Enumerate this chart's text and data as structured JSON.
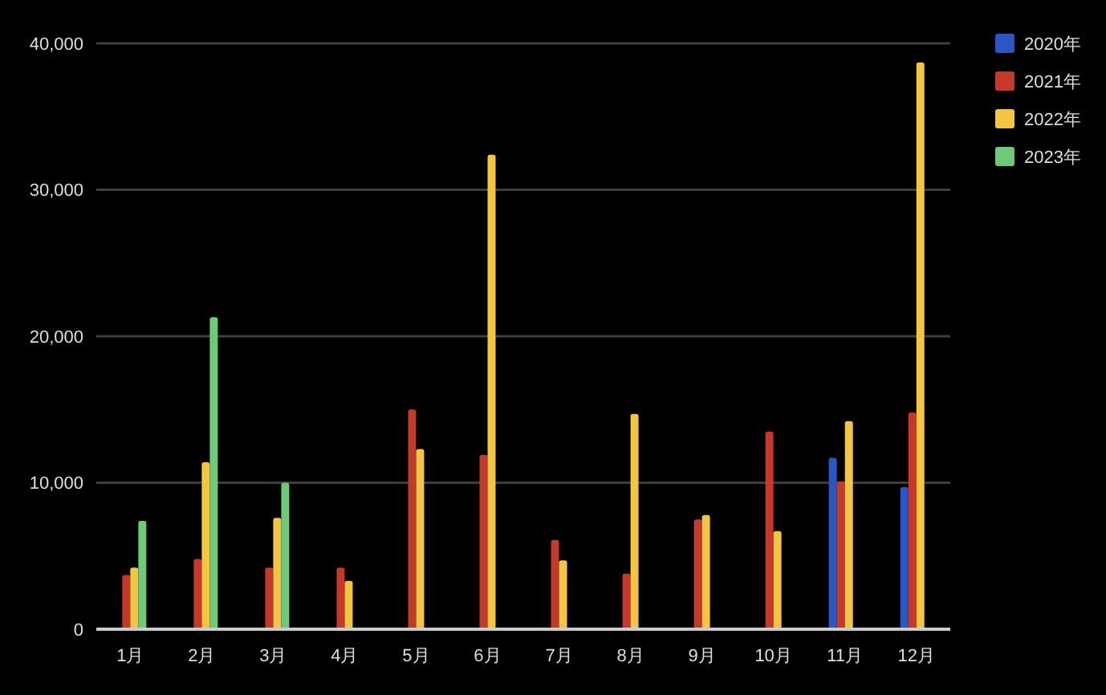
{
  "chart_data": {
    "type": "bar",
    "categories": [
      "1月",
      "2月",
      "3月",
      "4月",
      "5月",
      "6月",
      "7月",
      "8月",
      "9月",
      "10月",
      "11月",
      "12月"
    ],
    "series": [
      {
        "name": "2020年",
        "color": "#2a56c6",
        "values": [
          null,
          null,
          null,
          null,
          null,
          null,
          null,
          null,
          null,
          null,
          11700,
          9700
        ]
      },
      {
        "name": "2021年",
        "color": "#c5392b",
        "values": [
          3700,
          4800,
          4200,
          4200,
          15000,
          11900,
          6100,
          3800,
          7500,
          13500,
          10100,
          14800
        ]
      },
      {
        "name": "2022年",
        "color": "#f4c443",
        "values": [
          4200,
          11400,
          7600,
          3300,
          12300,
          32400,
          4700,
          14700,
          7800,
          6700,
          14200,
          38700
        ]
      },
      {
        "name": "2023年",
        "color": "#6fc97a",
        "values": [
          7400,
          21300,
          10000,
          null,
          null,
          null,
          null,
          null,
          null,
          null,
          null,
          null
        ]
      }
    ],
    "ylim": [
      0,
      40000
    ],
    "yticks": [
      {
        "value": 0,
        "label": "0"
      },
      {
        "value": 10000,
        "label": "10,000"
      },
      {
        "value": 20000,
        "label": "20,000"
      },
      {
        "value": 30000,
        "label": "30,000"
      },
      {
        "value": 40000,
        "label": "40,000"
      }
    ],
    "grid": "y",
    "legend": "right"
  }
}
